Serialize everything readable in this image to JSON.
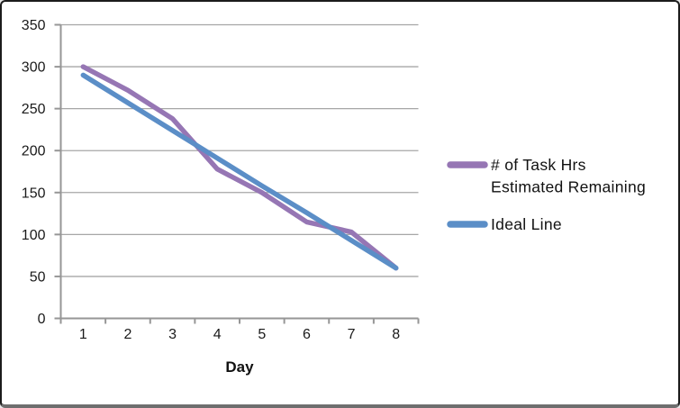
{
  "chart_data": {
    "type": "line",
    "title": "",
    "xlabel": "Day",
    "ylabel": "",
    "categories": [
      1,
      2,
      3,
      4,
      5,
      6,
      7,
      8
    ],
    "x_tick_labels": [
      "1",
      "2",
      "3",
      "4",
      "5",
      "6",
      "7",
      "8"
    ],
    "series": [
      {
        "name": "# of Task Hrs Estimated Remaining",
        "color": "#9676b4",
        "values": [
          300,
          272,
          238,
          178,
          150,
          115,
          103,
          60
        ]
      },
      {
        "name": "Ideal Line",
        "color": "#5b8ec7",
        "values": [
          290,
          257,
          224,
          191,
          158,
          126,
          93,
          60
        ]
      }
    ],
    "ylim": [
      0,
      350
    ],
    "y_ticks": [
      0,
      50,
      100,
      150,
      200,
      250,
      300,
      350
    ],
    "grid": "horizontal-only",
    "legend_position": "right-center"
  },
  "legend": {
    "items": [
      {
        "label_line1": "# of Task Hrs",
        "label_line2": "Estimated Remaining"
      },
      {
        "label_line1": "Ideal Line",
        "label_line2": ""
      }
    ]
  },
  "colors": {
    "gridline": "#a6a6a6",
    "axis": "#969696",
    "label_text": "#1a1a1a",
    "background": "#ffffff",
    "frame_border": "#1c1c1c"
  }
}
